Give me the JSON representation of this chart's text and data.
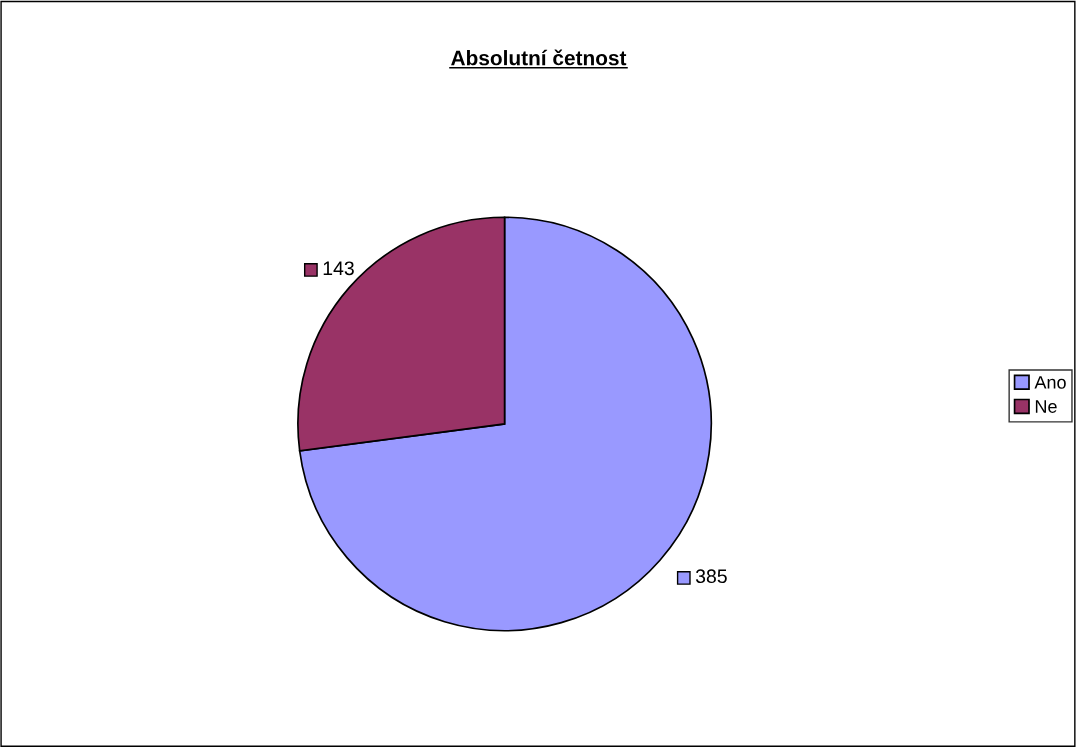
{
  "chart_data": {
    "type": "pie",
    "title": "Absolutní četnost",
    "categories": [
      "Ano",
      "Ne"
    ],
    "values": [
      385,
      143
    ],
    "colors": [
      "#9999ff",
      "#993366"
    ],
    "data_labels": true,
    "legend": "right"
  }
}
